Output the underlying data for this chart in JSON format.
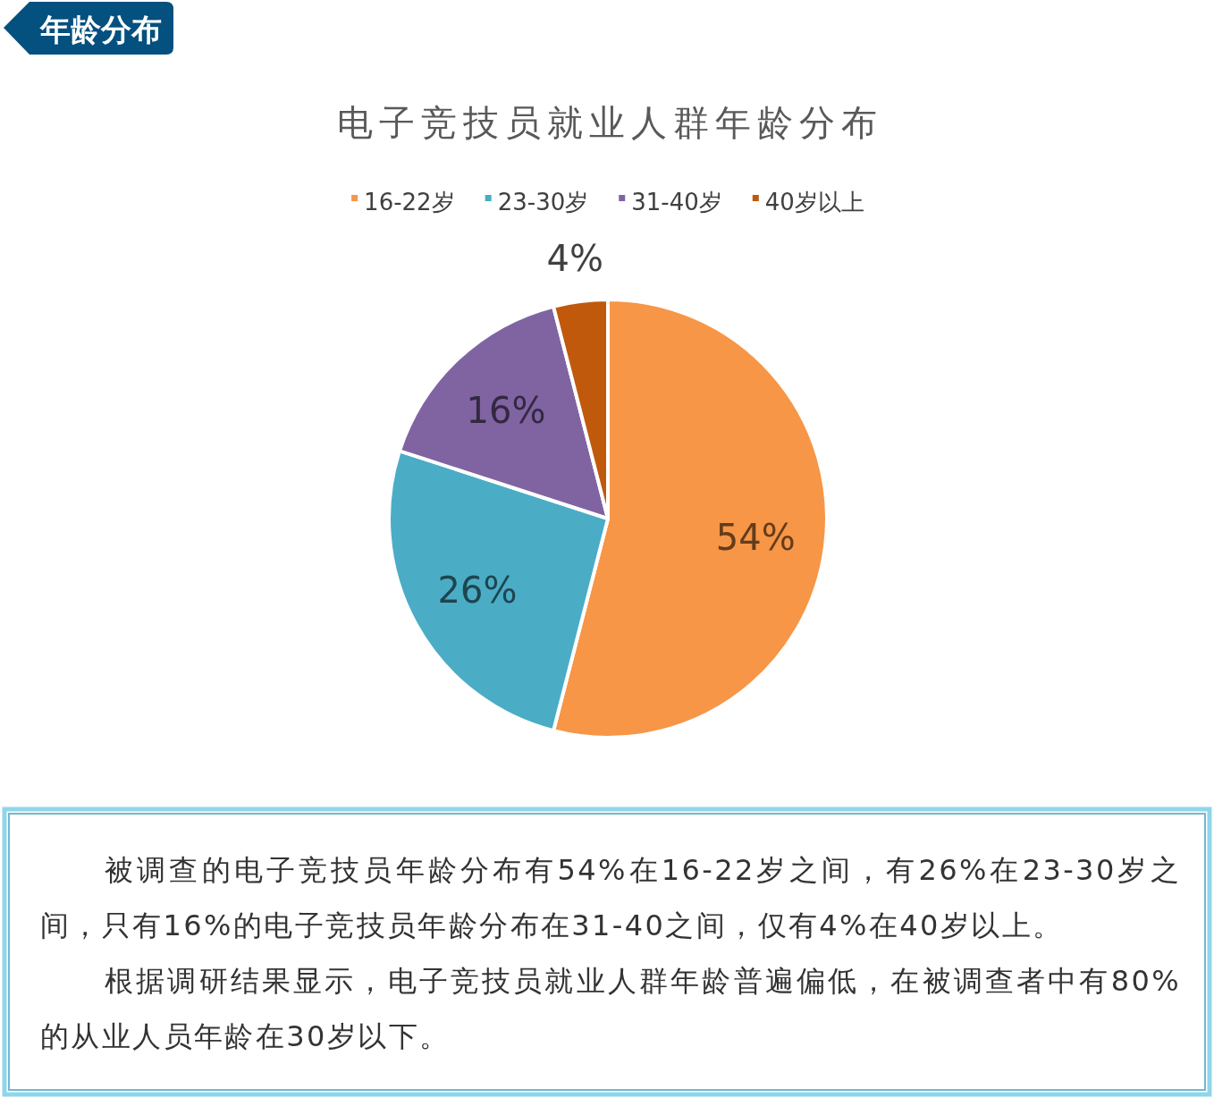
{
  "chart_data": {
    "type": "pie",
    "title": "电子竞技员就业人群年龄分布",
    "categories": [
      "16-22岁",
      "23-30岁",
      "31-40岁",
      "40岁以上"
    ],
    "values": [
      54,
      26,
      16,
      4
    ],
    "colors": [
      "#f79646",
      "#4bacc6",
      "#8064a2",
      "#c0590c"
    ],
    "value_labels": [
      "54%",
      "26%",
      "16%",
      "4%"
    ],
    "legend": "top",
    "annotations": [
      "年龄分布",
      "被调查的电子竞技员年龄分布有54%在16-22岁之间，有26%在23-30岁之间，只有16%的电子竞技员年龄分布在31-40之间，仅有4%在40岁以上。",
      "根据调研结果显示，电子竞技员就业人群年龄普遍偏低，在被调查者中有80%的从业人员年龄在30岁以下。"
    ]
  }
}
